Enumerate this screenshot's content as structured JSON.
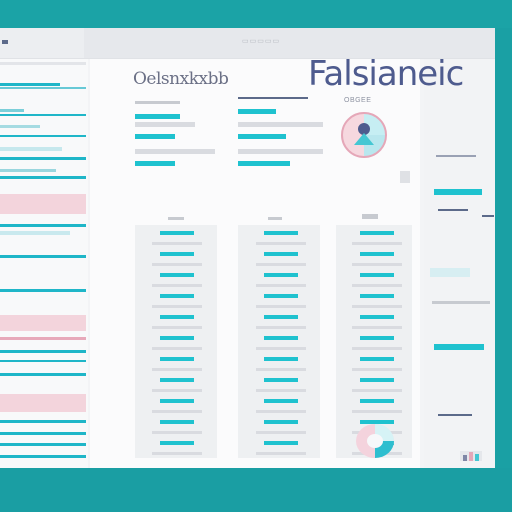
{
  "app": {
    "title_large": "Falsianeic",
    "title_small": "Oelsnxkxbb",
    "topbar_text": "▭▭▭▭▭",
    "column_header_right": "OBGEE"
  },
  "colors": {
    "accent": "#1fc2cf",
    "pink": "#f5d6de",
    "navy": "#4e5b8e",
    "background": "#1aa0a4"
  },
  "icons": {
    "chart_donut_top": "pie-chart-icon",
    "chart_donut_bottom": "donut-chart-icon",
    "chart_thumb": "bar-chart-icon"
  }
}
